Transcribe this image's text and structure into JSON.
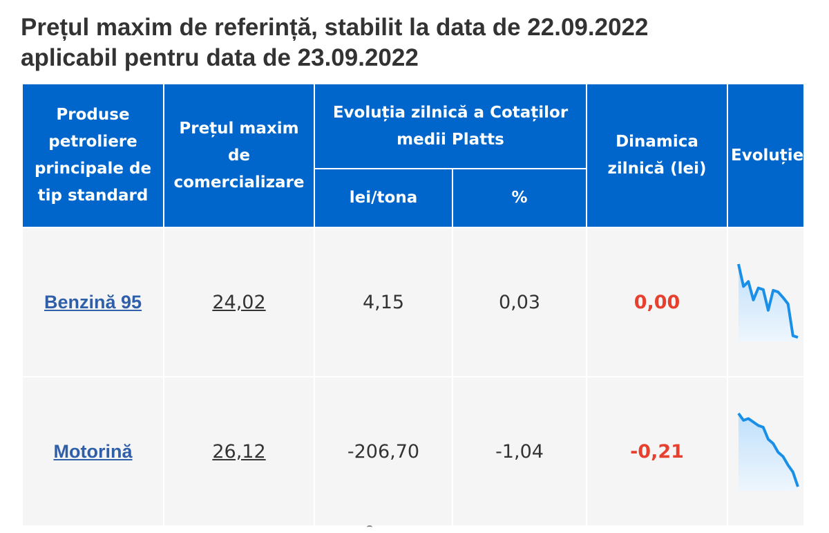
{
  "title": {
    "line1": "Prețul maxim de referință, stabilit la data de 22.09.2022",
    "line2": "aplicabil pentru data de 23.09.2022"
  },
  "table": {
    "headers": {
      "product": "Produse petroliere principale de tip standard",
      "max_price": "Prețul maxim de comercializare",
      "platts": "Evoluția zilnică a Cotaților medii Platts",
      "lei_tona": "lei/tona",
      "percent": "%",
      "dynamics": "Dinamica zilnică (lei)",
      "evolution": "Evoluție"
    },
    "rows": [
      {
        "product": "Benzină 95",
        "price": "24,02",
        "lei_tona": "4,15",
        "percent": "0,03",
        "dynamics": "0,00",
        "sparkline": [
          100,
          72,
          78,
          55,
          70,
          68,
          42,
          67,
          65,
          58,
          50,
          10,
          8
        ]
      },
      {
        "product": "Motorină",
        "price": "26,12",
        "lei_tona": "-206,70",
        "percent": "-1,04",
        "dynamics": "-0,21",
        "sparkline": [
          90,
          82,
          84,
          80,
          76,
          74,
          60,
          55,
          45,
          40,
          30,
          22,
          5
        ]
      }
    ]
  },
  "colors": {
    "header_bg": "#0066cc",
    "link": "#2f5fa8",
    "negative": "#e8402f",
    "sparkline_line": "#1a8fe8",
    "sparkline_fill": "#bfe0fb"
  }
}
